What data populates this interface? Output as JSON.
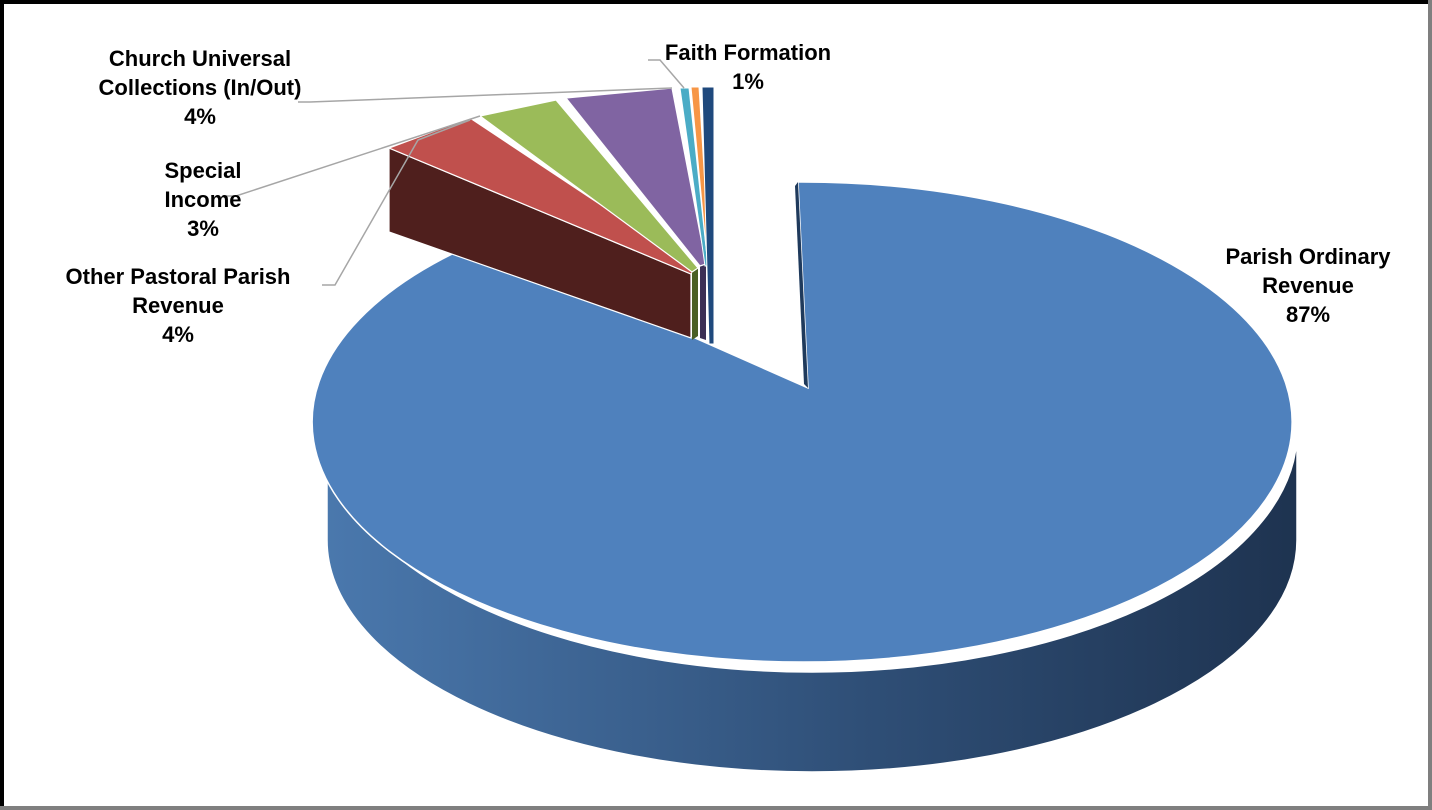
{
  "chart_data": {
    "type": "pie",
    "title": "",
    "legend": "none",
    "slices": [
      {
        "name": "Parish Ordinary Revenue",
        "label_lines": [
          "Parish Ordinary",
          "Revenue"
        ],
        "percent_label": "87%",
        "value": 87,
        "color": "#4f81bd"
      },
      {
        "name": "Other Pastoral Parish Revenue",
        "label_lines": [
          "Other Pastoral Parish",
          "Revenue"
        ],
        "percent_label": "4%",
        "value": 4,
        "color": "#c0504d"
      },
      {
        "name": "Special Income",
        "label_lines": [
          "Special",
          "Income"
        ],
        "percent_label": "3%",
        "value": 3,
        "color": "#9bbb59"
      },
      {
        "name": "Church Universal Collections (In/Out)",
        "label_lines": [
          "Church Universal",
          "Collections (In/Out)"
        ],
        "percent_label": "4%",
        "value": 4,
        "color": "#8064a2"
      },
      {
        "name": "",
        "label_lines": [],
        "percent_label": "",
        "value": 0.6,
        "color": "#4bacc6"
      },
      {
        "name": "",
        "label_lines": [],
        "percent_label": "",
        "value": 0.6,
        "color": "#f79646"
      },
      {
        "name": "Faith Formation",
        "label_lines": [
          "Faith Formation"
        ],
        "percent_label": "1%",
        "value": 0.8,
        "color": "#1f497d"
      }
    ]
  }
}
